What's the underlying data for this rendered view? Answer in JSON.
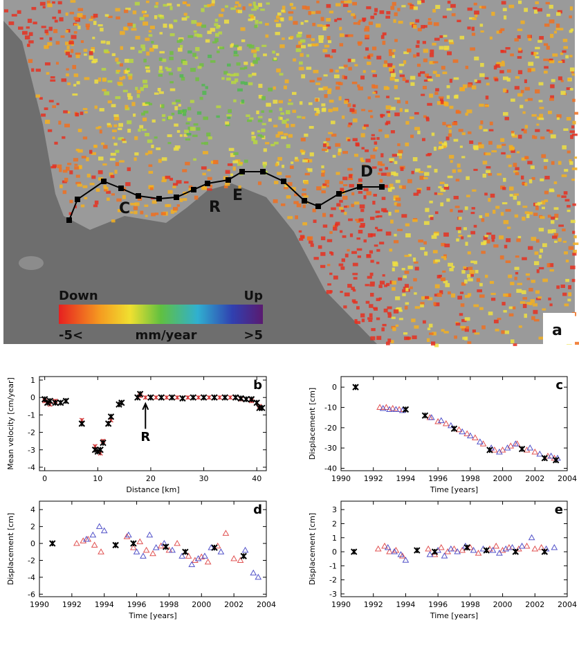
{
  "map": {
    "panel_label": "a",
    "labels": [
      "C",
      "R",
      "E",
      "D"
    ],
    "colorbar": {
      "low": "Down",
      "high": "Up",
      "min_label": "-5<",
      "unit": "mm/year",
      "max_label": ">5"
    }
  },
  "chart_data": [
    {
      "type": "scatter",
      "panel_label": "b",
      "xlabel": "Distance [km]",
      "ylabel": "Mean velocity [cm/year]",
      "xlim": [
        -1,
        41.8
      ],
      "ylim": [
        -4.2,
        1.2
      ],
      "xticks": [
        0,
        10,
        20,
        30,
        40
      ],
      "yticks": [
        -4,
        -3,
        -2,
        -1,
        0,
        1
      ],
      "annotations": [
        {
          "text": "R",
          "x": 19
        }
      ],
      "series": [
        {
          "color": "#d03030",
          "marker": "x",
          "x": [
            0,
            1,
            2,
            7,
            9.5,
            10.5,
            11,
            12.5,
            14.5,
            18,
            19,
            21,
            23,
            25,
            27,
            29,
            31,
            33,
            35,
            37,
            39,
            40.5
          ],
          "y": [
            -0.2,
            -0.4,
            -0.2,
            -1.3,
            -2.8,
            -3.2,
            -2.5,
            -1.3,
            -0.3,
            0.1,
            0,
            0,
            0,
            0,
            0,
            0,
            0,
            0,
            0,
            -0.1,
            -0.2,
            -0.5
          ]
        },
        {
          "color": "#000000",
          "marker": "x",
          "x": [
            0,
            0.5,
            1,
            2,
            3,
            4,
            7,
            9.5,
            10,
            10.5,
            11,
            12,
            12.5,
            14,
            14.5,
            17.5,
            18,
            20,
            22,
            24,
            26,
            28,
            30,
            32,
            34,
            36,
            37,
            38,
            39,
            40,
            40.5,
            41
          ],
          "y": [
            -0.1,
            -0.3,
            -0.2,
            -0.3,
            -0.3,
            -0.2,
            -1.5,
            -3,
            -3.1,
            -3,
            -2.6,
            -1.5,
            -1.1,
            -0.4,
            -0.3,
            0,
            0.2,
            0,
            0,
            0,
            -0.05,
            0,
            0,
            0,
            0,
            0,
            -0.05,
            -0.1,
            -0.1,
            -0.3,
            -0.6,
            -0.6
          ]
        }
      ]
    },
    {
      "type": "scatter",
      "panel_label": "c",
      "xlabel": "Time [years]",
      "ylabel": "Displacement [cm]",
      "xlim": [
        1990,
        2004
      ],
      "ylim": [
        -41.2,
        5.2
      ],
      "xticks": [
        1990,
        1992,
        1994,
        1996,
        1998,
        2000,
        2002,
        2004
      ],
      "yticks": [
        -40,
        -30,
        -20,
        -10,
        0
      ],
      "series": [
        {
          "color": "#e05050",
          "marker": "triangle",
          "x": [
            1992.4,
            1992.8,
            1993.2,
            1993.6,
            1995.5,
            1996,
            1996.5,
            1997.3,
            1997.8,
            1998.3,
            1998.8,
            1999.5,
            2000,
            2000.5,
            2000.9,
            2001.5,
            2002,
            2002.8,
            2003.2
          ],
          "y": [
            -10,
            -10,
            -10.5,
            -11,
            -15,
            -17,
            -18,
            -21,
            -23,
            -25,
            -28,
            -31,
            -31,
            -29,
            -28,
            -31,
            -32,
            -34,
            -35
          ]
        },
        {
          "color": "#5050c8",
          "marker": "triangle",
          "x": [
            1992.6,
            1993,
            1993.4,
            1993.8,
            1995.6,
            1996.2,
            1996.8,
            1997.5,
            1998,
            1998.6,
            1999.3,
            1999.8,
            2000.3,
            2000.8,
            2001.7,
            2002.3,
            2003,
            2003.4
          ],
          "y": [
            -10.5,
            -11,
            -11,
            -11.5,
            -15,
            -16.5,
            -19,
            -22,
            -24,
            -27,
            -30,
            -32,
            -30,
            -28,
            -30,
            -33,
            -34,
            -35
          ]
        },
        {
          "color": "#000000",
          "marker": "x",
          "x": [
            1990.9,
            1994,
            1995.2,
            1997,
            1999.2,
            2001.2,
            2002.6,
            2003.3
          ],
          "y": [
            0,
            -11,
            -14,
            -20.5,
            -31,
            -30.5,
            -35,
            -36
          ]
        }
      ]
    },
    {
      "type": "scatter",
      "panel_label": "d",
      "xlabel": "Time [years]",
      "ylabel": "Displacement [cm]",
      "xlim": [
        1990,
        2004
      ],
      "ylim": [
        -6.3,
        5
      ],
      "xticks": [
        1990,
        1992,
        1994,
        1996,
        1998,
        2000,
        2002,
        2004
      ],
      "yticks": [
        -6,
        -4,
        -2,
        0,
        2,
        4
      ],
      "series": [
        {
          "color": "#e05050",
          "marker": "triangle",
          "x": [
            1992.3,
            1992.7,
            1993,
            1993.4,
            1993.8,
            1995.4,
            1995.8,
            1996.2,
            1996.6,
            1997,
            1997.5,
            1998,
            1998.5,
            1999.2,
            1999.6,
            2000,
            2000.4,
            2001,
            2001.5,
            2002,
            2002.4
          ],
          "y": [
            0,
            0.3,
            0.5,
            -0.2,
            -1,
            0.8,
            -0.5,
            0.2,
            -0.8,
            -1.2,
            -0.3,
            -0.8,
            0,
            -1.5,
            -2,
            -1.6,
            -2.2,
            -0.3,
            1.2,
            -1.8,
            -2
          ]
        },
        {
          "color": "#5050c8",
          "marker": "triangle",
          "x": [
            1992.9,
            1993.3,
            1993.7,
            1994,
            1995.5,
            1996,
            1996.4,
            1996.8,
            1997.2,
            1997.7,
            1998.2,
            1998.8,
            1999.4,
            1999.8,
            2000.2,
            2000.6,
            2001.2,
            2002.7,
            2003.2,
            2003.5
          ],
          "y": [
            0.5,
            1,
            2,
            1.5,
            1,
            -1,
            -1.5,
            1,
            -0.5,
            0,
            -0.8,
            -1.5,
            -2.5,
            -1.8,
            -1.5,
            -0.5,
            -1,
            -0.8,
            -3.5,
            -4
          ]
        },
        {
          "color": "#000000",
          "marker": "x",
          "x": [
            1990.8,
            1994.7,
            1995.8,
            1997.8,
            1999,
            2000.8,
            2002.6
          ],
          "y": [
            0,
            -0.2,
            0,
            -0.4,
            -1,
            -0.5,
            -1.5
          ]
        }
      ]
    },
    {
      "type": "scatter",
      "panel_label": "e",
      "xlabel": "Time [years]",
      "ylabel": "Displacement [cm]",
      "xlim": [
        1990,
        2004
      ],
      "ylim": [
        -3.2,
        3.6
      ],
      "xticks": [
        1990,
        1992,
        1994,
        1996,
        1998,
        2000,
        2002,
        2004
      ],
      "yticks": [
        -3,
        -2,
        -1,
        0,
        1,
        2,
        3
      ],
      "series": [
        {
          "color": "#e05050",
          "marker": "triangle",
          "x": [
            1992.3,
            1992.7,
            1993,
            1993.4,
            1993.8,
            1995.4,
            1995.8,
            1996.2,
            1996.6,
            1997,
            1997.5,
            1998,
            1998.5,
            1999.2,
            1999.6,
            2000,
            2000.4,
            2001,
            2001.5,
            2002,
            2002.4
          ],
          "y": [
            0.2,
            0.4,
            0,
            0.1,
            -0.3,
            0.2,
            -0.2,
            0.3,
            0,
            0.2,
            0.1,
            0.3,
            -0.1,
            0.2,
            0.4,
            0.1,
            0.3,
            0.2,
            0.4,
            0.2,
            0.3
          ]
        },
        {
          "color": "#5050c8",
          "marker": "triangle",
          "x": [
            1992.9,
            1993.3,
            1993.7,
            1994,
            1995.5,
            1996,
            1996.4,
            1996.8,
            1997.2,
            1997.7,
            1998.2,
            1998.8,
            1999.4,
            1999.8,
            2000.2,
            2000.6,
            2001.2,
            2001.8,
            2002.7,
            2003.2
          ],
          "y": [
            0.3,
            0,
            -0.2,
            -0.6,
            -0.2,
            0.1,
            -0.3,
            0.2,
            0,
            0.4,
            0.1,
            0.2,
            0.1,
            -0.1,
            0.2,
            0.3,
            0.4,
            1,
            0.2,
            0.3
          ]
        },
        {
          "color": "#000000",
          "marker": "x",
          "x": [
            1990.8,
            1994.7,
            1995.8,
            1997.8,
            1999,
            2000.8,
            2002.6
          ],
          "y": [
            0,
            0.1,
            0,
            0.3,
            0.1,
            0,
            0
          ]
        }
      ]
    }
  ]
}
